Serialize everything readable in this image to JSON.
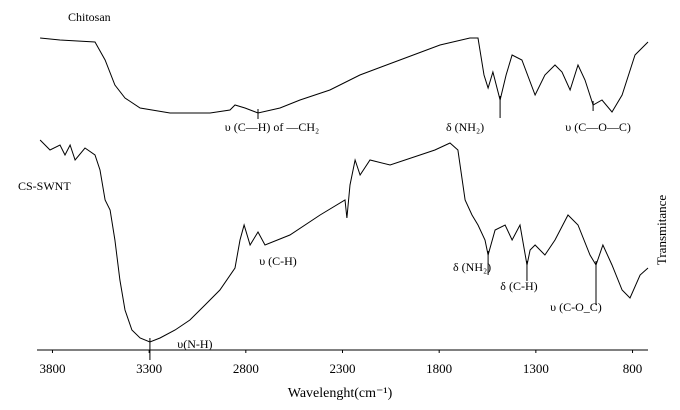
{
  "chart_data": {
    "type": "line",
    "x_label": "Wavelenght(cm⁻¹)",
    "y_label": "Transmitance",
    "xlim": [
      3880,
      720
    ],
    "xticks": [
      3800,
      3300,
      2800,
      2300,
      1800,
      1300,
      800
    ],
    "ylim": [
      0,
      320
    ],
    "series": [
      {
        "name": "Chitosan",
        "color": "#000000",
        "x": [
          3864,
          3761,
          3580,
          3528,
          3477,
          3425,
          3347,
          3192,
          2985,
          2882,
          2856,
          2804,
          2737,
          2623,
          2520,
          2365,
          2210,
          2003,
          1796,
          1641,
          1599,
          1568,
          1547,
          1522,
          1485,
          1454,
          1423,
          1372,
          1304,
          1253,
          1201,
          1165,
          1123,
          1082,
          1046,
          1004,
          958,
          906,
          854,
          787,
          720
        ],
        "values": [
          312,
          310,
          308,
          290,
          265,
          252,
          242,
          237,
          237,
          240,
          245,
          242,
          237,
          242,
          250,
          260,
          275,
          290,
          305,
          312,
          312,
          275,
          262,
          278,
          250,
          275,
          295,
          290,
          255,
          275,
          285,
          278,
          260,
          285,
          270,
          245,
          250,
          238,
          255,
          295,
          308
        ]
      },
      {
        "name": "CS-SWNT",
        "color": "#000000",
        "x": [
          3864,
          3813,
          3761,
          3735,
          3709,
          3683,
          3632,
          3580,
          3554,
          3528,
          3502,
          3477,
          3451,
          3425,
          3389,
          3347,
          3296,
          3244,
          3166,
          3089,
          3011,
          2934,
          2856,
          2830,
          2809,
          2778,
          2737,
          2701,
          2572,
          2416,
          2287,
          2277,
          2261,
          2235,
          2209,
          2158,
          2054,
          1899,
          1822,
          1744,
          1703,
          1666,
          1630,
          1599,
          1563,
          1547,
          1511,
          1459,
          1423,
          1382,
          1346,
          1330,
          1304,
          1253,
          1201,
          1134,
          1082,
          1020,
          989,
          953,
          906,
          854,
          813,
          761,
          720
        ],
        "values": [
          210,
          200,
          205,
          195,
          205,
          190,
          202,
          195,
          180,
          150,
          140,
          110,
          70,
          40,
          20,
          12,
          8,
          12,
          20,
          30,
          45,
          60,
          82,
          110,
          125,
          105,
          118,
          105,
          115,
          135,
          150,
          132,
          165,
          190,
          175,
          190,
          185,
          195,
          200,
          207,
          200,
          150,
          135,
          125,
          110,
          95,
          120,
          125,
          110,
          125,
          85,
          100,
          105,
          95,
          110,
          135,
          125,
          95,
          85,
          105,
          85,
          60,
          52,
          75,
          82
        ]
      }
    ],
    "annotations": [
      {
        "text": "υ (C—H) of —CH₂",
        "x": 2737
      },
      {
        "text": "δ (NH₂)",
        "x": 1485
      },
      {
        "text": "υ (C—O—C)",
        "x": 1004
      },
      {
        "text": "υ(N-H)",
        "x": 3296
      },
      {
        "text": "υ (C-H)",
        "x": 2737
      },
      {
        "text": "δ (NH₂)",
        "x": 1547
      },
      {
        "text": "δ (C-H)",
        "x": 1346
      },
      {
        "text": "υ (C-O_C)",
        "x": 989
      }
    ]
  }
}
